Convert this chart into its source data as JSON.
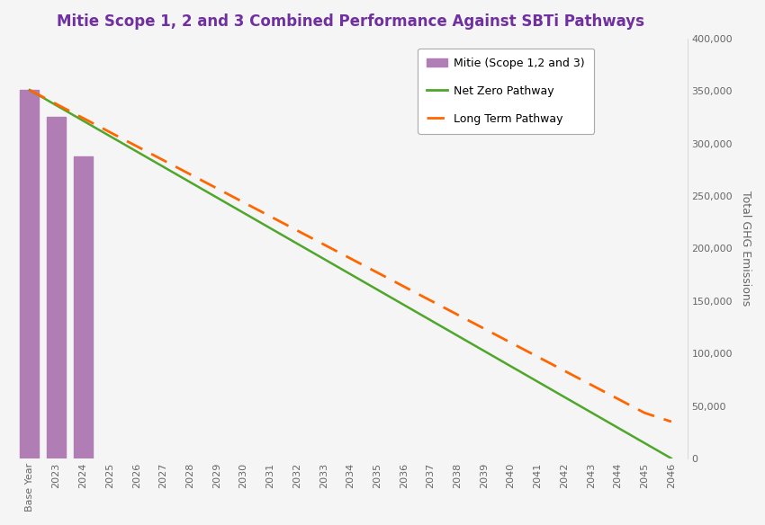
{
  "title": "Mitie Scope 1, 2 and 3 Combined Performance Against SBTi Pathways",
  "title_color": "#7030a0",
  "title_fontsize": 12,
  "bar_categories": [
    "Base Year",
    "2023",
    "2024"
  ],
  "bar_values": [
    351000,
    325000,
    288000
  ],
  "bar_color": "#b07db5",
  "bar_edgecolor": "#b07db5",
  "years_line": [
    "Base Year",
    "2023",
    "2024",
    "2025",
    "2026",
    "2027",
    "2028",
    "2029",
    "2030",
    "2031",
    "2032",
    "2033",
    "2034",
    "2035",
    "2036",
    "2037",
    "2038",
    "2039",
    "2040",
    "2041",
    "2042",
    "2043",
    "2044",
    "2045",
    "2046"
  ],
  "net_zero_values": [
    351000,
    336375,
    321750,
    307125,
    292500,
    277875,
    263250,
    248625,
    234000,
    219375,
    204750,
    190125,
    175500,
    160875,
    146250,
    131625,
    117000,
    102375,
    87750,
    73125,
    58500,
    43875,
    29250,
    14625,
    0
  ],
  "long_term_values": [
    351000,
    337625,
    324250,
    310875,
    297500,
    284125,
    270750,
    257375,
    244000,
    230625,
    217250,
    203875,
    190500,
    177125,
    163750,
    150375,
    137000,
    123625,
    110250,
    96875,
    83500,
    70125,
    56750,
    43375,
    35000
  ],
  "net_zero_color": "#4ea72a",
  "long_term_color": "#ff6600",
  "ylabel_right": "Total GHG Emissions",
  "ylim": [
    0,
    400000
  ],
  "yticks": [
    0,
    50000,
    100000,
    150000,
    200000,
    250000,
    300000,
    350000,
    400000
  ],
  "ytick_labels": [
    "0",
    "50,000",
    "100,000",
    "150,000",
    "200,000",
    "250,000",
    "300,000",
    "350,000",
    "400,000"
  ],
  "grid_color": "#d0d0d0",
  "background_color": "#f5f5f5",
  "legend_mitie_label": "Mitie (Scope 1,2 and 3)",
  "legend_nz_label": "Net Zero Pathway",
  "legend_lt_label": "Long Term Pathway",
  "legend_fontsize": 9,
  "tick_fontsize": 8,
  "tick_color": "#666666"
}
